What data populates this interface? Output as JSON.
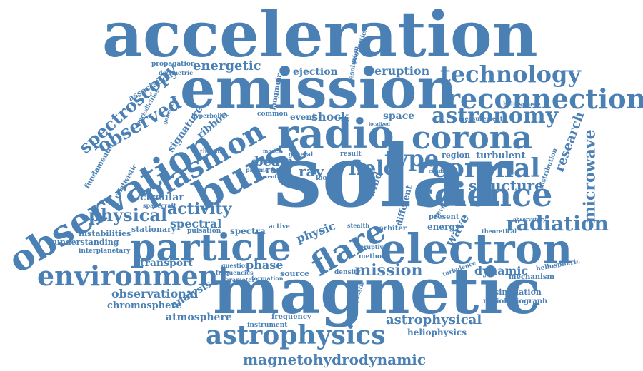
{
  "cloud": {
    "color": "#4a80b4",
    "words": [
      "acceleration",
      "emission",
      "solar",
      "magnetic",
      "radio",
      "burst",
      "particle",
      "electron",
      "flare",
      "observation",
      "corona",
      "science",
      "reconnection",
      "astrophysics",
      "environment",
      "technology",
      "astronomy",
      "coronal",
      "plasmon",
      "spectroscopy",
      "observed",
      "activity",
      "type",
      "physical",
      "radiation",
      "field",
      "mission",
      "microwave",
      "research",
      "structure",
      "magnetohydrodynamic",
      "astrophysical",
      "energetic",
      "eruption",
      "ejection",
      "observational",
      "chromosphere",
      "atmosphere",
      "dynamic",
      "spectral",
      "spectra",
      "phase",
      "physic",
      "wave",
      "heliophysics",
      "simulation",
      "radioheliograph",
      "mechanism",
      "heliospheric",
      "transport",
      "analysis",
      "beam",
      "ray",
      "shock",
      "event",
      "space",
      "region",
      "turbulent",
      "circular",
      "stationary",
      "pulsation",
      "instabilities",
      "understanding",
      "interplanetary",
      "frequency",
      "instrument",
      "source",
      "density",
      "orbiter",
      "present",
      "energy",
      "origin",
      "rope",
      "loop",
      "common",
      "hyperbolic",
      "signature",
      "ribbon",
      "propagation",
      "decimetric",
      "association",
      "fundamental",
      "relativistic",
      "spacecraft",
      "heliosphere",
      "measurement",
      "theoretical",
      "observatory",
      "distribution",
      "resolution",
      "properties",
      "question",
      "frequencies",
      "parameter",
      "formation",
      "active",
      "thermal",
      "generation",
      "periodicities",
      "diagnostic",
      "eruptive",
      "method",
      "review",
      "condition",
      "stealth",
      "result",
      "general",
      "model",
      "current",
      "turbulence",
      "wind",
      "different",
      "plasma",
      "langmuir",
      "localized"
    ]
  }
}
